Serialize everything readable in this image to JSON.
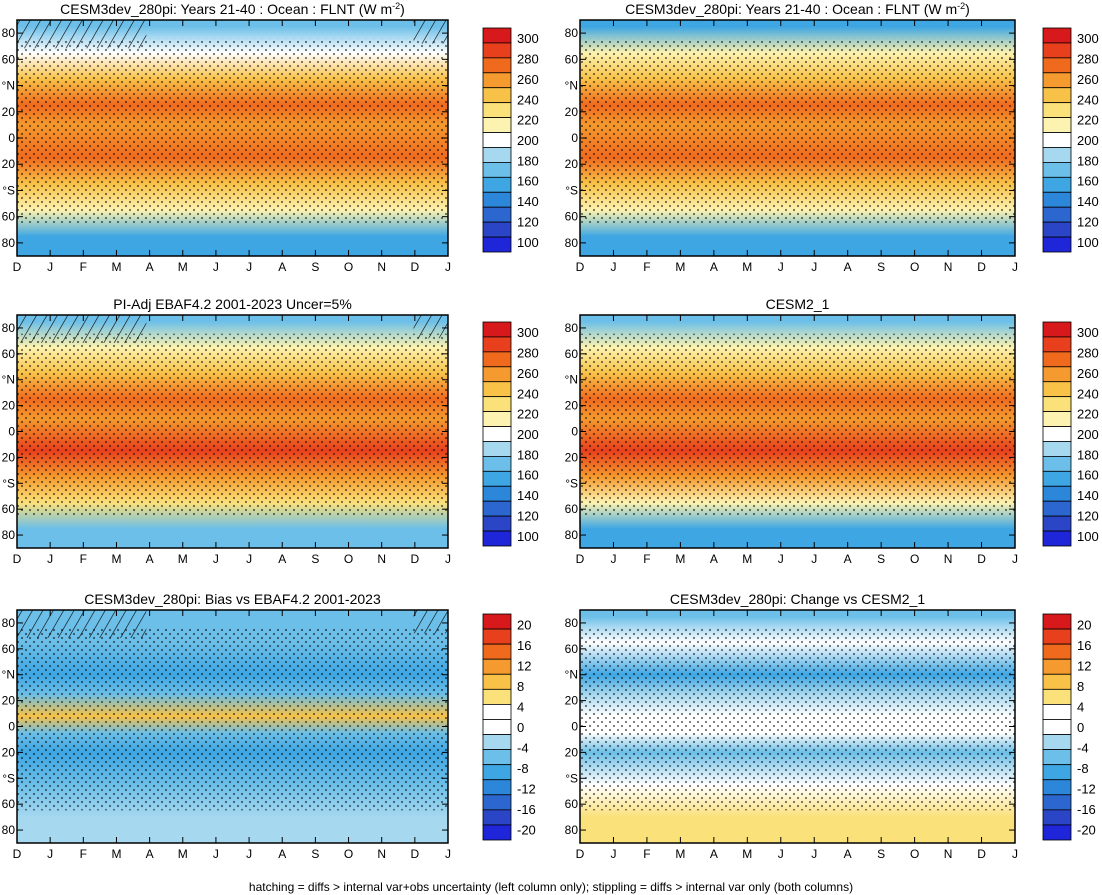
{
  "figure": {
    "footer": "hatching = diffs > internal var+obs uncertainty (left column only); stippling = diffs > internal var only (both columns)"
  },
  "axes_common": {
    "x_ticks": [
      "D",
      "J",
      "F",
      "M",
      "A",
      "M",
      "J",
      "J",
      "A",
      "S",
      "O",
      "N",
      "D",
      "J"
    ],
    "y_ticks": [
      "80",
      "60",
      "°N",
      "20",
      "0",
      "20",
      "°S",
      "60",
      "80"
    ]
  },
  "colorbars": {
    "absolute": {
      "labels": [
        "300",
        "280",
        "260",
        "240",
        "220",
        "200",
        "180",
        "160",
        "140",
        "120",
        "100"
      ],
      "colors": [
        "#d7191c",
        "#e8401c",
        "#f06a1e",
        "#f59a2e",
        "#f8c248",
        "#fbe17a",
        "#fdf3b0",
        "#ffffff",
        "#a6d8f0",
        "#6cbfe8",
        "#3ea6e3",
        "#2c86d9",
        "#2c66cf",
        "#2b45c7",
        "#1f25d9"
      ]
    },
    "difference": {
      "labels": [
        "20",
        "16",
        "12",
        "8",
        "4",
        "0",
        "-4",
        "-8",
        "-12",
        "-16",
        "-20"
      ],
      "colors": [
        "#d7191c",
        "#e8401c",
        "#f06a1e",
        "#f59a2e",
        "#f8c248",
        "#fbe17a",
        "#ffffff",
        "#ffffff",
        "#a6d8f0",
        "#6cbfe8",
        "#3ea6e3",
        "#2c86d9",
        "#2c66cf",
        "#2b45c7",
        "#1f25d9"
      ]
    }
  },
  "chart_data": [
    {
      "type": "heatmap",
      "title": "CESM3dev_280pi: Years 21-40 : Ocean : FLNT (W m",
      "title_sup": "-2",
      "title_end": ")",
      "xlabel": "",
      "ylabel": "",
      "x": [
        "D",
        "J",
        "F",
        "M",
        "A",
        "M",
        "J",
        "J",
        "A",
        "S",
        "O",
        "N",
        "D",
        "J"
      ],
      "y": [
        -90,
        90
      ],
      "colorbar": "absolute",
      "zlim": [
        100,
        300
      ],
      "bands": [
        {
          "lat": 85,
          "value": 170
        },
        {
          "lat": 65,
          "value": 205
        },
        {
          "lat": 45,
          "value": 235
        },
        {
          "lat": 25,
          "value": 262
        },
        {
          "lat": 10,
          "value": 252
        },
        {
          "lat": -15,
          "value": 268
        },
        {
          "lat": -35,
          "value": 245
        },
        {
          "lat": -55,
          "value": 218
        },
        {
          "lat": -75,
          "value": 160
        }
      ],
      "hatching": true,
      "stippling": true
    },
    {
      "type": "heatmap",
      "title": "CESM3dev_280pi: Years 21-40 : Ocean : FLNT (W m",
      "title_sup": "-2",
      "title_end": ")",
      "xlabel": "",
      "ylabel": "",
      "x": [
        "D",
        "J",
        "F",
        "M",
        "A",
        "M",
        "J",
        "J",
        "A",
        "S",
        "O",
        "N",
        "D",
        "J"
      ],
      "y": [
        -90,
        90
      ],
      "colorbar": "absolute",
      "zlim": [
        100,
        300
      ],
      "bands": [
        {
          "lat": 85,
          "value": 165
        },
        {
          "lat": 65,
          "value": 210
        },
        {
          "lat": 45,
          "value": 238
        },
        {
          "lat": 25,
          "value": 262
        },
        {
          "lat": 10,
          "value": 250
        },
        {
          "lat": -15,
          "value": 270
        },
        {
          "lat": -35,
          "value": 246
        },
        {
          "lat": -55,
          "value": 214
        },
        {
          "lat": -75,
          "value": 162
        }
      ],
      "hatching": false,
      "stippling": true
    },
    {
      "type": "heatmap",
      "title": "PI-Adj EBAF4.2 2001-2023 Uncer=5%",
      "xlabel": "",
      "ylabel": "",
      "x": [
        "D",
        "J",
        "F",
        "M",
        "A",
        "M",
        "J",
        "J",
        "A",
        "S",
        "O",
        "N",
        "D",
        "J"
      ],
      "y": [
        -90,
        90
      ],
      "colorbar": "absolute",
      "zlim": [
        100,
        300
      ],
      "bands": [
        {
          "lat": 85,
          "value": 175
        },
        {
          "lat": 65,
          "value": 212
        },
        {
          "lat": 45,
          "value": 240
        },
        {
          "lat": 25,
          "value": 272
        },
        {
          "lat": 10,
          "value": 258
        },
        {
          "lat": -15,
          "value": 278
        },
        {
          "lat": -35,
          "value": 252
        },
        {
          "lat": -55,
          "value": 222
        },
        {
          "lat": -75,
          "value": 168
        }
      ],
      "hatching": true,
      "stippling": true
    },
    {
      "type": "heatmap",
      "title": "CESM2_1",
      "xlabel": "",
      "ylabel": "",
      "x": [
        "D",
        "J",
        "F",
        "M",
        "A",
        "M",
        "J",
        "J",
        "A",
        "S",
        "O",
        "N",
        "D",
        "J"
      ],
      "y": [
        -90,
        90
      ],
      "colorbar": "absolute",
      "zlim": [
        100,
        300
      ],
      "bands": [
        {
          "lat": 85,
          "value": 168
        },
        {
          "lat": 65,
          "value": 208
        },
        {
          "lat": 45,
          "value": 236
        },
        {
          "lat": 25,
          "value": 266
        },
        {
          "lat": 10,
          "value": 252
        },
        {
          "lat": -15,
          "value": 274
        },
        {
          "lat": -35,
          "value": 248
        },
        {
          "lat": -55,
          "value": 215
        },
        {
          "lat": -75,
          "value": 158
        }
      ],
      "hatching": false,
      "stippling": true
    },
    {
      "type": "heatmap",
      "title": "CESM3dev_280pi: Bias vs EBAF4.2 2001-2023",
      "xlabel": "",
      "ylabel": "",
      "x": [
        "D",
        "J",
        "F",
        "M",
        "A",
        "M",
        "J",
        "J",
        "A",
        "S",
        "O",
        "N",
        "D",
        "J"
      ],
      "y": [
        -90,
        90
      ],
      "colorbar": "difference",
      "zlim": [
        -20,
        20
      ],
      "bands": [
        {
          "lat": 85,
          "value": -6
        },
        {
          "lat": 65,
          "value": -5
        },
        {
          "lat": 40,
          "value": -8
        },
        {
          "lat": 25,
          "value": -5
        },
        {
          "lat": 8,
          "value": 7
        },
        {
          "lat": -5,
          "value": -4
        },
        {
          "lat": -20,
          "value": -9
        },
        {
          "lat": -45,
          "value": -6
        },
        {
          "lat": -70,
          "value": -2
        }
      ],
      "hatching": true,
      "stippling": true
    },
    {
      "type": "heatmap",
      "title": "CESM3dev_280pi: Change vs CESM2_1",
      "xlabel": "",
      "ylabel": "",
      "x": [
        "D",
        "J",
        "F",
        "M",
        "A",
        "M",
        "J",
        "J",
        "A",
        "S",
        "O",
        "N",
        "D",
        "J"
      ],
      "y": [
        -90,
        90
      ],
      "colorbar": "difference",
      "zlim": [
        -20,
        20
      ],
      "bands": [
        {
          "lat": 85,
          "value": -5
        },
        {
          "lat": 65,
          "value": -1
        },
        {
          "lat": 40,
          "value": -8
        },
        {
          "lat": 25,
          "value": -3
        },
        {
          "lat": 8,
          "value": 4
        },
        {
          "lat": -5,
          "value": 2
        },
        {
          "lat": -20,
          "value": -4
        },
        {
          "lat": -45,
          "value": 1
        },
        {
          "lat": -70,
          "value": 6
        }
      ],
      "hatching": false,
      "stippling": true
    }
  ]
}
